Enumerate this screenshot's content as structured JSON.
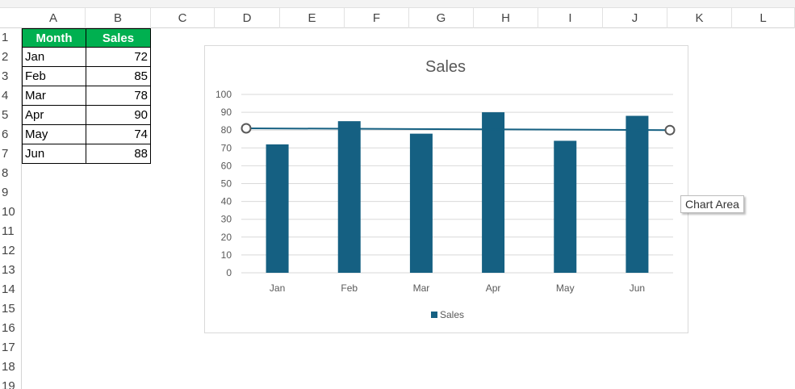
{
  "columns": [
    "A",
    "B",
    "C",
    "D",
    "E",
    "F",
    "G",
    "H",
    "I",
    "J",
    "K",
    "L"
  ],
  "rows": [
    "1",
    "2",
    "3",
    "4",
    "5",
    "6",
    "7",
    "8",
    "9",
    "10",
    "11",
    "12",
    "13",
    "14",
    "15",
    "16",
    "17",
    "18",
    "19"
  ],
  "table": {
    "headers": [
      "Month",
      "Sales"
    ],
    "rows": [
      {
        "month": "Jan",
        "sales": "72"
      },
      {
        "month": "Feb",
        "sales": "85"
      },
      {
        "month": "Mar",
        "sales": "78"
      },
      {
        "month": "Apr",
        "sales": "90"
      },
      {
        "month": "May",
        "sales": "74"
      },
      {
        "month": "Jun",
        "sales": "88"
      }
    ]
  },
  "header_fill_color": "#00b050",
  "chart_data": {
    "type": "bar",
    "title": "Sales",
    "categories": [
      "Jan",
      "Feb",
      "Mar",
      "Apr",
      "May",
      "Jun"
    ],
    "series": [
      {
        "name": "Sales",
        "values": [
          72,
          85,
          78,
          90,
          74,
          88
        ]
      }
    ],
    "ylim": [
      0,
      100
    ],
    "yticks": [
      "0",
      "10",
      "20",
      "30",
      "40",
      "50",
      "60",
      "70",
      "80",
      "90",
      "100"
    ],
    "grid": true,
    "legend_position": "bottom",
    "bar_color": "#156082",
    "drawn_line": {
      "start_value": 81,
      "end_value": 80,
      "color": "#156082"
    }
  },
  "tooltip": "Chart Area"
}
